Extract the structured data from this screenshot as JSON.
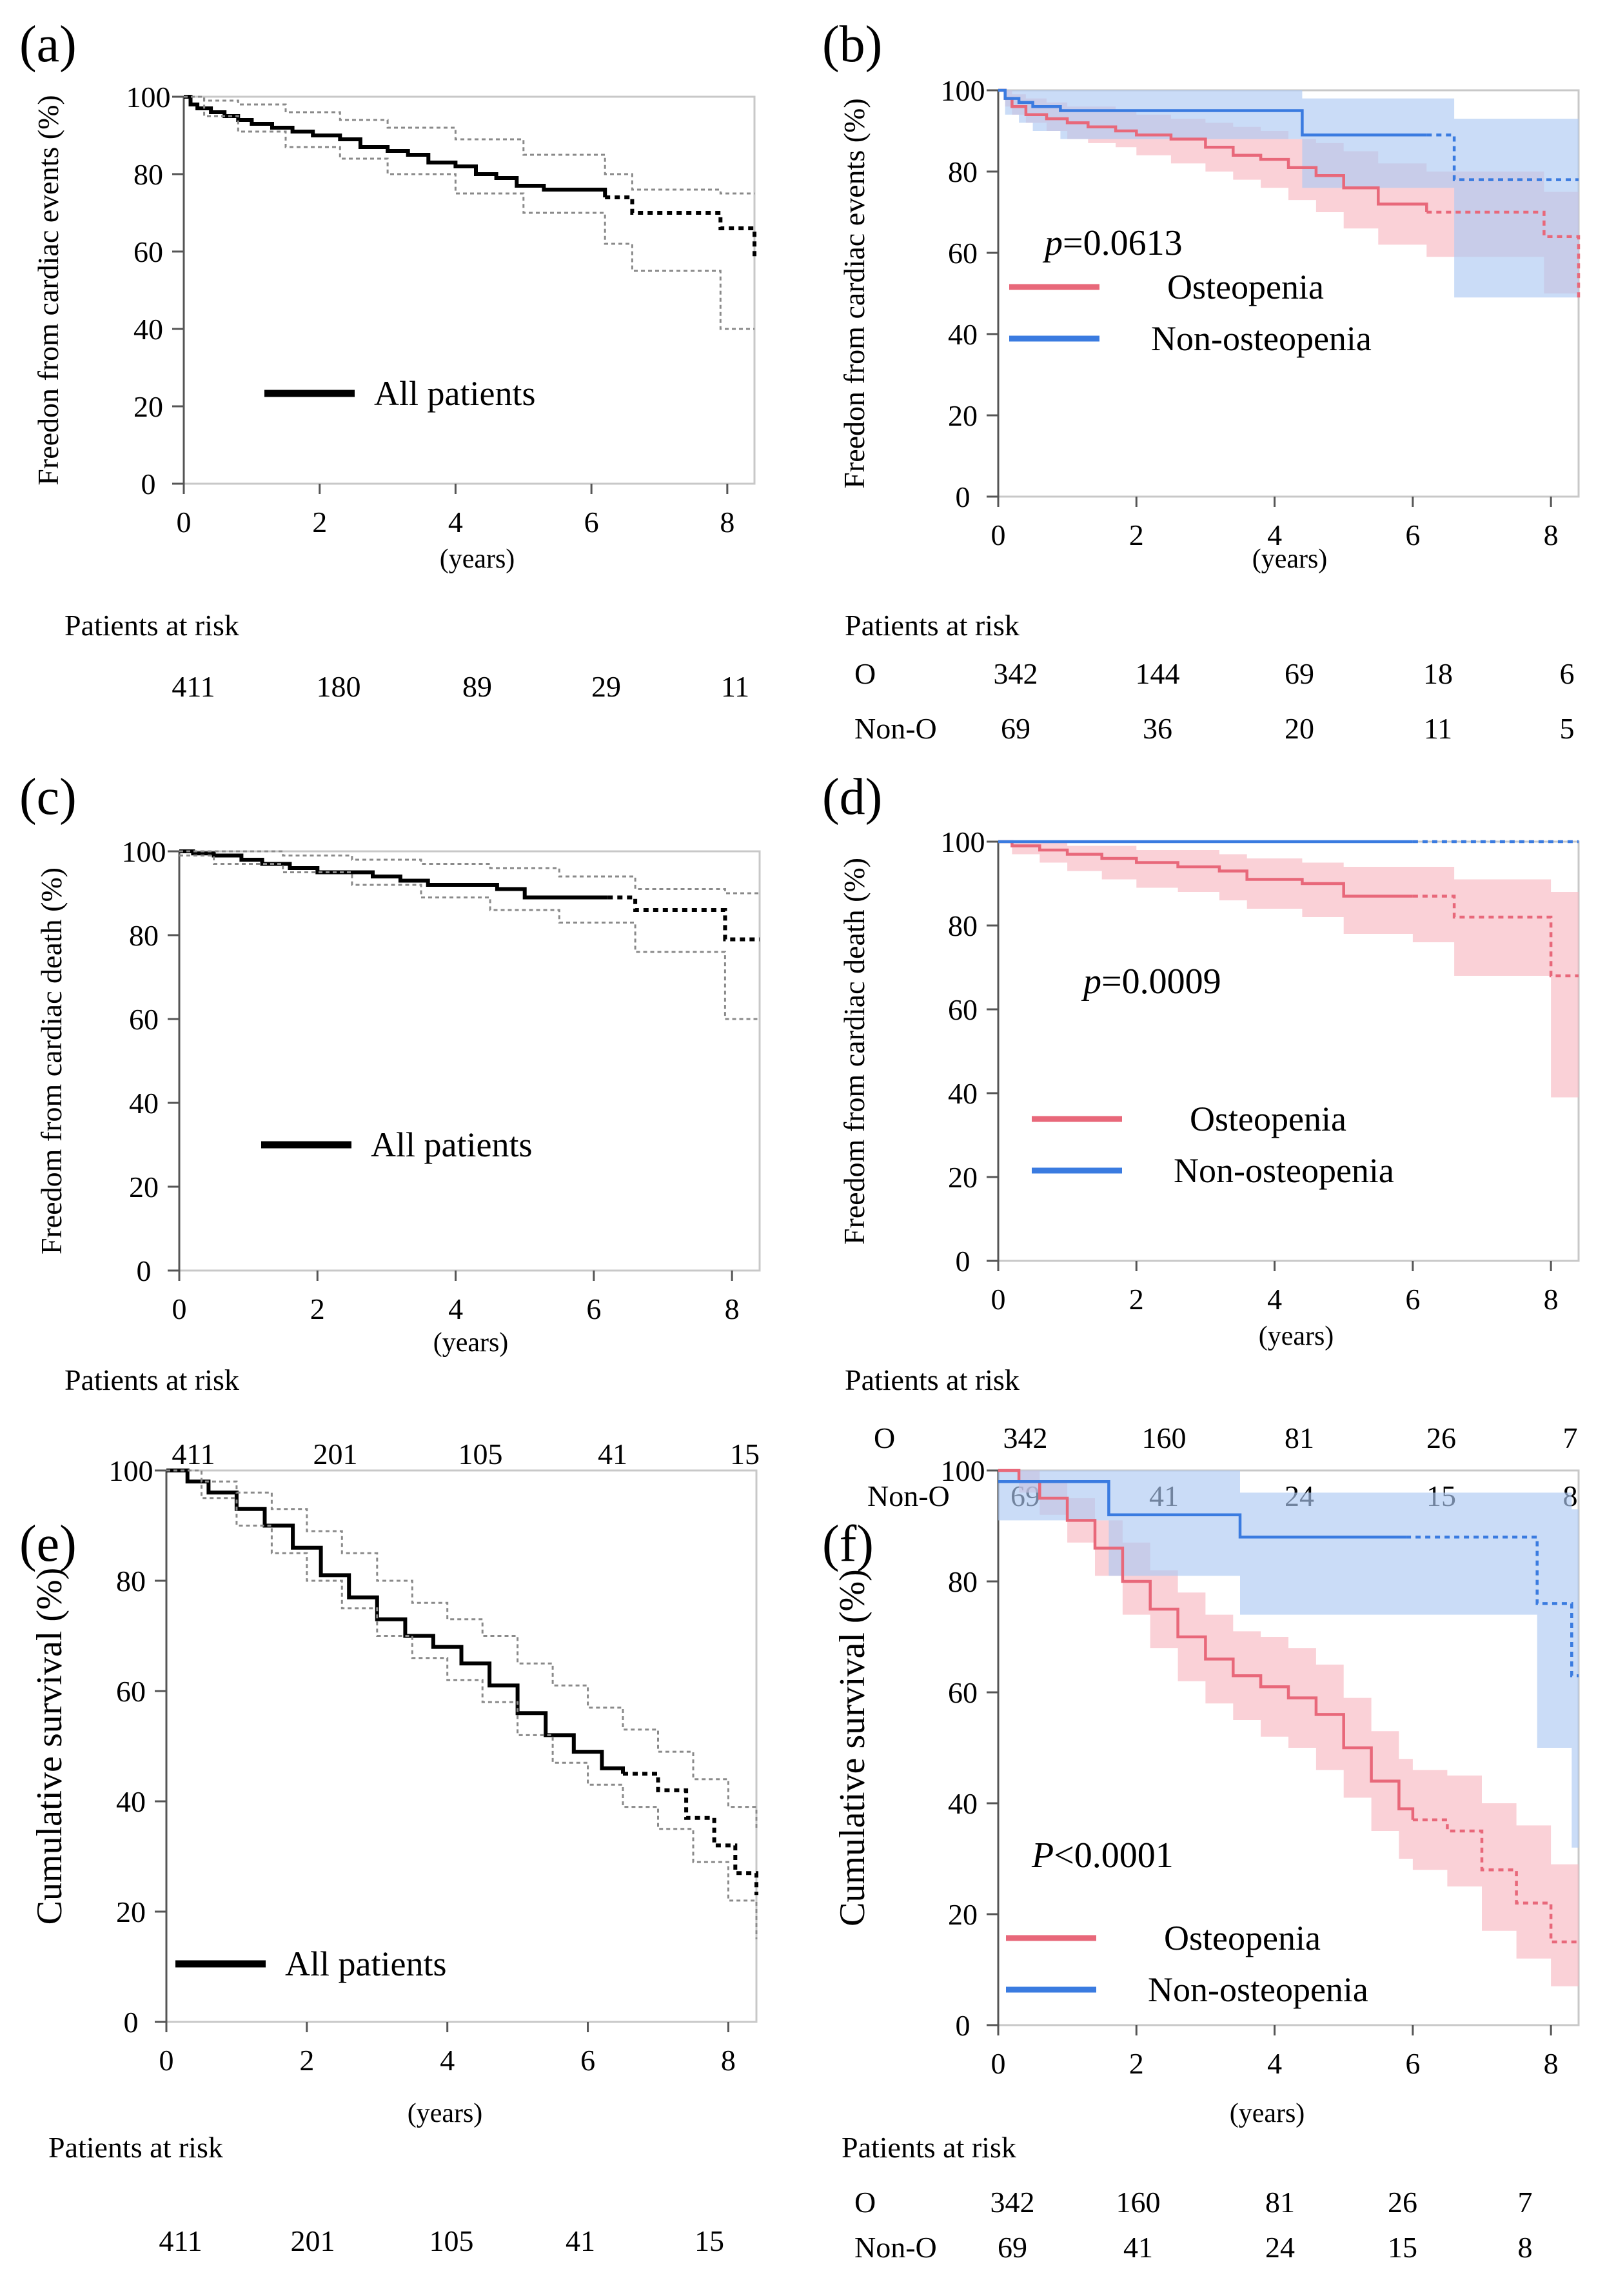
{
  "figure": {
    "colors": {
      "osteopenia": "#e8687a",
      "osteopenia_band": "#f7b9c2",
      "non_osteopenia": "#3a7be0",
      "non_osteopenia_band": "#aec9f3",
      "all": "#000000",
      "ci": "#8a8a8a"
    },
    "risk_header": "Patients at risk",
    "years_label": "(years)"
  },
  "chart_data": [
    {
      "id": "a",
      "panel_label": "(a)",
      "type": "line",
      "group": "all",
      "ylabel": "Freedon from cardiac events (%)",
      "xlabel": "(years)",
      "xlim": [
        0,
        8.4
      ],
      "ylim": [
        0,
        100
      ],
      "xticks": [
        0,
        2,
        4,
        6,
        8
      ],
      "yticks": [
        0,
        20,
        40,
        60,
        80,
        100
      ],
      "legend": [
        {
          "label": "All patients",
          "color": "#000000"
        }
      ],
      "pvalue": null,
      "series": [
        {
          "name": "All patients",
          "color": "#000000",
          "solid_until": 6.2,
          "x": [
            0,
            0.1,
            0.2,
            0.4,
            0.6,
            0.8,
            1.0,
            1.3,
            1.6,
            1.9,
            2.3,
            2.6,
            3.0,
            3.3,
            3.6,
            4.0,
            4.3,
            4.6,
            4.9,
            5.3,
            6.2,
            6.6,
            7.9,
            8.4
          ],
          "y": [
            100,
            98,
            97,
            96,
            95,
            94,
            93,
            92,
            91,
            90,
            89,
            87,
            86,
            85,
            83,
            82,
            80,
            79,
            77,
            76,
            74,
            70,
            66,
            58
          ]
        },
        {
          "name": "Upper 95% CI",
          "color": "#8a8a8a",
          "ci": true,
          "x": [
            0,
            0.3,
            0.8,
            1.5,
            2.3,
            3.0,
            4.0,
            5.0,
            6.2,
            6.6,
            7.9,
            8.4
          ],
          "y": [
            100,
            99,
            98,
            96,
            94,
            92,
            89,
            85,
            80,
            76,
            75,
            75
          ]
        },
        {
          "name": "Lower 95% CI",
          "color": "#8a8a8a",
          "ci": true,
          "x": [
            0,
            0.3,
            0.8,
            1.5,
            2.3,
            3.0,
            4.0,
            5.0,
            6.2,
            6.6,
            7.9,
            8.4
          ],
          "y": [
            100,
            95,
            91,
            87,
            84,
            80,
            75,
            70,
            62,
            55,
            40,
            40
          ]
        }
      ],
      "risk": {
        "rows": [
          {
            "label": "",
            "values": [
              "411",
              "180",
              "89",
              "29",
              "11"
            ]
          }
        ]
      }
    },
    {
      "id": "b",
      "panel_label": "(b)",
      "type": "line",
      "group": "two",
      "ylabel": "Freedon from cardiac events (%)",
      "xlabel": "(years)",
      "xlim": [
        0,
        8.4
      ],
      "ylim": [
        0,
        100
      ],
      "xticks": [
        0,
        2,
        4,
        6,
        8
      ],
      "yticks": [
        0,
        20,
        40,
        60,
        80,
        100
      ],
      "legend": [
        {
          "label": "Osteopenia",
          "color": "#e8687a"
        },
        {
          "label": "Non-osteopenia",
          "color": "#3a7be0"
        }
      ],
      "pvalue": {
        "italic": "p",
        "rest": "=0.0613",
        "color": "#000000"
      },
      "series": [
        {
          "name": "Osteopenia",
          "color": "#e8687a",
          "solid_until": 6.2,
          "x": [
            0,
            0.1,
            0.2,
            0.4,
            0.7,
            1.0,
            1.3,
            1.7,
            2.0,
            2.5,
            3.0,
            3.4,
            3.8,
            4.2,
            4.6,
            5.0,
            5.5,
            6.2,
            7.9,
            8.4
          ],
          "y": [
            100,
            98,
            96,
            94,
            93,
            92,
            91,
            90,
            89,
            88,
            86,
            84,
            83,
            81,
            79,
            76,
            72,
            70,
            64,
            48
          ],
          "upper": [
            100,
            100,
            99,
            98,
            97,
            96,
            96,
            95,
            94,
            93,
            92,
            91,
            90,
            88,
            87,
            85,
            82,
            80,
            75,
            75
          ],
          "lower": [
            100,
            96,
            94,
            92,
            90,
            88,
            87,
            86,
            84,
            82,
            80,
            78,
            76,
            73,
            70,
            66,
            62,
            59,
            50,
            23
          ]
        },
        {
          "name": "Non-osteopenia",
          "color": "#3a7be0",
          "solid_until": 6.2,
          "x": [
            0,
            0.1,
            0.3,
            0.5,
            0.9,
            4.4,
            6.6,
            8.4
          ],
          "y": [
            100,
            98,
            97,
            96,
            95,
            89,
            78,
            78
          ],
          "upper": [
            100,
            100,
            100,
            100,
            100,
            98,
            93,
            93
          ],
          "lower": [
            100,
            94,
            92,
            90,
            88,
            76,
            49,
            49
          ]
        }
      ],
      "risk": {
        "rows": [
          {
            "label": "O",
            "values": [
              "342",
              "144",
              "69",
              "18",
              "6"
            ]
          },
          {
            "label": "Non-O",
            "values": [
              "69",
              "36",
              "20",
              "11",
              "5"
            ]
          }
        ]
      }
    },
    {
      "id": "c",
      "panel_label": "(c)",
      "type": "line",
      "group": "all",
      "ylabel": "Freedom from cardiac death (%)",
      "xlabel": "(years)",
      "xlim": [
        0,
        8.4
      ],
      "ylim": [
        0,
        100
      ],
      "xticks": [
        0,
        2,
        4,
        6,
        8
      ],
      "yticks": [
        0,
        20,
        40,
        60,
        80,
        100
      ],
      "legend": [
        {
          "label": "All patients",
          "color": "#000000"
        }
      ],
      "pvalue": null,
      "series": [
        {
          "name": "All patients",
          "color": "#000000",
          "solid_until": 6.2,
          "x": [
            0,
            0.2,
            0.5,
            0.9,
            1.2,
            1.6,
            2.0,
            2.8,
            3.2,
            3.6,
            4.6,
            5.0,
            6.2,
            6.6,
            7.9,
            8.4
          ],
          "y": [
            100,
            99.5,
            99,
            98,
            97,
            96,
            95,
            94,
            93,
            92,
            91,
            89,
            89,
            86,
            79,
            79
          ],
          "upper": null,
          "lower": null
        },
        {
          "name": "Upper 95% CI",
          "color": "#8a8a8a",
          "ci": true,
          "x": [
            0,
            0.5,
            1.5,
            2.5,
            3.5,
            4.5,
            5.5,
            6.6,
            7.9,
            8.4
          ],
          "y": [
            100,
            100,
            99,
            98,
            97,
            96,
            94,
            91,
            90,
            90
          ]
        },
        {
          "name": "Lower 95% CI",
          "color": "#8a8a8a",
          "ci": true,
          "x": [
            0,
            0.5,
            1.5,
            2.5,
            3.5,
            4.5,
            5.5,
            6.6,
            7.9,
            8.4
          ],
          "y": [
            99,
            97,
            95,
            92,
            89,
            86,
            83,
            76,
            60,
            60
          ]
        }
      ],
      "risk": {
        "rows": [
          {
            "label": "",
            "values": [
              "411",
              "201",
              "105",
              "41",
              "15"
            ]
          }
        ]
      }
    },
    {
      "id": "d",
      "panel_label": "(d)",
      "type": "line",
      "group": "two",
      "ylabel": "Freedom from cardiac death (%)",
      "xlabel": "(years)",
      "xlim": [
        0,
        8.4
      ],
      "ylim": [
        0,
        100
      ],
      "xticks": [
        0,
        2,
        4,
        6,
        8
      ],
      "yticks": [
        0,
        20,
        40,
        60,
        80,
        100
      ],
      "legend": [
        {
          "label": "Osteopenia",
          "color": "#e8687a"
        },
        {
          "label": "Non-osteopenia",
          "color": "#3a7be0"
        }
      ],
      "pvalue": {
        "italic": "p",
        "rest": "=0.0009",
        "color": "#e00000"
      },
      "series": [
        {
          "name": "Osteopenia",
          "color": "#e8687a",
          "solid_until": 6.0,
          "x": [
            0,
            0.2,
            0.6,
            1.0,
            1.5,
            2.0,
            2.6,
            3.2,
            3.6,
            4.4,
            5.0,
            6.0,
            6.6,
            8.0,
            8.4
          ],
          "y": [
            100,
            99,
            98,
            97,
            96,
            95,
            94,
            93,
            91,
            90,
            87,
            87,
            82,
            68,
            68
          ],
          "upper": [
            100,
            100,
            100,
            99,
            99,
            98,
            98,
            97,
            96,
            95,
            94,
            94,
            91,
            88,
            88
          ],
          "lower": [
            100,
            97,
            95,
            93,
            91,
            89,
            88,
            86,
            84,
            82,
            78,
            76,
            68,
            39,
            39
          ]
        },
        {
          "name": "Non-osteopenia",
          "color": "#3a7be0",
          "solid_until": 6.0,
          "x": [
            0,
            8.4
          ],
          "y": [
            100,
            100
          ],
          "upper": null,
          "lower": null
        }
      ],
      "risk": {
        "rows": [
          {
            "label": "O",
            "values": [
              "342",
              "160",
              "81",
              "26",
              "7"
            ]
          },
          {
            "label": "Non-O",
            "values": [
              "69",
              "41",
              "24",
              "15",
              "8"
            ]
          }
        ]
      }
    },
    {
      "id": "e",
      "panel_label": "(e)",
      "type": "line",
      "group": "all",
      "ylabel": "Cumulative survival (%)",
      "xlabel": "(years)",
      "xlim": [
        0,
        8.4
      ],
      "ylim": [
        0,
        100
      ],
      "xticks": [
        0,
        2,
        4,
        6,
        8
      ],
      "yticks": [
        0,
        20,
        40,
        60,
        80,
        100
      ],
      "legend": [
        {
          "label": "All patients",
          "color": "#000000"
        }
      ],
      "pvalue": null,
      "series": [
        {
          "name": "All patients",
          "color": "#000000",
          "solid_until": 6.5,
          "x": [
            0,
            0.3,
            0.6,
            1.0,
            1.4,
            1.8,
            2.2,
            2.6,
            3.0,
            3.4,
            3.8,
            4.2,
            4.6,
            5.0,
            5.4,
            5.8,
            6.2,
            6.5,
            7.0,
            7.4,
            7.8,
            8.1,
            8.4
          ],
          "y": [
            100,
            98,
            96,
            93,
            90,
            86,
            81,
            77,
            73,
            70,
            68,
            65,
            61,
            56,
            52,
            49,
            46,
            45,
            42,
            37,
            32,
            27,
            23
          ]
        },
        {
          "name": "Upper 95% CI",
          "color": "#8a8a8a",
          "ci": true,
          "x": [
            0,
            0.5,
            1.0,
            1.5,
            2.0,
            2.5,
            3.0,
            3.5,
            4.0,
            4.5,
            5.0,
            5.5,
            6.0,
            6.5,
            7.0,
            7.5,
            8.0,
            8.4
          ],
          "y": [
            100,
            98,
            96,
            93,
            89,
            85,
            80,
            76,
            73,
            70,
            65,
            61,
            57,
            53,
            49,
            44,
            39,
            35
          ]
        },
        {
          "name": "Lower 95% CI",
          "color": "#8a8a8a",
          "ci": true,
          "x": [
            0,
            0.5,
            1.0,
            1.5,
            2.0,
            2.5,
            3.0,
            3.5,
            4.0,
            4.5,
            5.0,
            5.5,
            6.0,
            6.5,
            7.0,
            7.5,
            8.0,
            8.4
          ],
          "y": [
            100,
            95,
            90,
            85,
            80,
            75,
            70,
            66,
            62,
            58,
            52,
            47,
            43,
            39,
            35,
            29,
            22,
            15
          ]
        }
      ],
      "risk": {
        "rows": [
          {
            "label": "",
            "values": [
              "411",
              "201",
              "105",
              "41",
              "15"
            ]
          }
        ]
      }
    },
    {
      "id": "f",
      "panel_label": "(f)",
      "type": "line",
      "group": "two",
      "ylabel": "Cumulative survival (%)",
      "xlabel": "(years)",
      "xlim": [
        0,
        8.4
      ],
      "ylim": [
        0,
        100
      ],
      "xticks": [
        0,
        2,
        4,
        6,
        8
      ],
      "yticks": [
        0,
        20,
        40,
        60,
        80,
        100
      ],
      "legend": [
        {
          "label": "Osteopenia",
          "color": "#e8687a"
        },
        {
          "label": "Non-osteopenia",
          "color": "#3a7be0"
        }
      ],
      "pvalue": {
        "italic": "P",
        "rest": "<0.0001",
        "color": "#e00000"
      },
      "series": [
        {
          "name": "Osteopenia",
          "color": "#e8687a",
          "solid_until": 6.0,
          "x": [
            0,
            0.3,
            0.6,
            1.0,
            1.4,
            1.8,
            2.2,
            2.6,
            3.0,
            3.4,
            3.8,
            4.2,
            4.6,
            5.0,
            5.4,
            5.8,
            6.0,
            6.5,
            7.0,
            7.5,
            8.0,
            8.4
          ],
          "y": [
            100,
            98,
            95,
            91,
            86,
            80,
            75,
            70,
            66,
            63,
            61,
            59,
            56,
            50,
            44,
            39,
            37,
            35,
            28,
            22,
            15,
            15
          ],
          "upper": [
            100,
            100,
            98,
            95,
            91,
            87,
            82,
            78,
            74,
            71,
            70,
            68,
            65,
            59,
            53,
            48,
            46,
            45,
            40,
            36,
            29,
            28
          ],
          "lower": [
            100,
            96,
            92,
            87,
            81,
            74,
            68,
            62,
            58,
            55,
            52,
            50,
            46,
            41,
            35,
            30,
            28,
            25,
            17,
            12,
            7,
            7
          ]
        },
        {
          "name": "Non-osteopenia",
          "color": "#3a7be0",
          "solid_until": 5.9,
          "x": [
            0,
            1.6,
            3.5,
            7.8,
            8.3,
            8.4
          ],
          "y": [
            98,
            92,
            88,
            76,
            63,
            63
          ],
          "upper": [
            100,
            100,
            96,
            96,
            93,
            87
          ],
          "lower": [
            91,
            81,
            74,
            50,
            32,
            32
          ]
        }
      ],
      "risk": {
        "rows": [
          {
            "label": "O",
            "values": [
              "342",
              "160",
              "81",
              "26",
              "7"
            ]
          },
          {
            "label": "Non-O",
            "values": [
              "69",
              "41",
              "24",
              "15",
              "8"
            ]
          }
        ]
      }
    }
  ]
}
